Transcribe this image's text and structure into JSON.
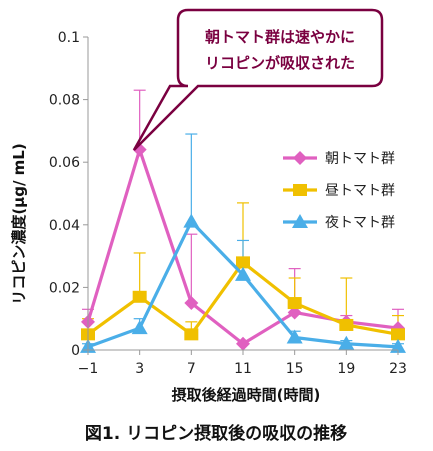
{
  "chart_data": {
    "type": "line",
    "x": [
      -1,
      3,
      7,
      11,
      15,
      19,
      23
    ],
    "xlabel": "摂取後経過時間(時間)",
    "ylabel": "リコピン濃度(μg/ mL)",
    "ylim": [
      0,
      0.1
    ],
    "y_ticks": [
      "0",
      "0.02",
      "0.04",
      "0.06",
      "0.08",
      "0.1"
    ],
    "x_ticks": [
      "−1",
      "3",
      "7",
      "11",
      "15",
      "19",
      "23"
    ],
    "grid": false,
    "legend_position": "right",
    "series": [
      {
        "name": "朝トマト群",
        "color": "#e060c0",
        "marker": "diamond",
        "values": [
          0.009,
          0.064,
          0.015,
          0.002,
          0.012,
          0.009,
          0.007
        ],
        "error_upper": [
          0.013,
          0.083,
          0.037,
          0.003,
          0.026,
          0.011,
          0.013
        ]
      },
      {
        "name": "昼トマト群",
        "color": "#f0c000",
        "marker": "square",
        "values": [
          0.005,
          0.017,
          0.005,
          0.028,
          0.015,
          0.008,
          0.005
        ],
        "error_upper": [
          0.01,
          0.031,
          0.009,
          0.047,
          0.023,
          0.023,
          0.011
        ]
      },
      {
        "name": "夜トマト群",
        "color": "#4aaee8",
        "marker": "triangle",
        "values": [
          0.001,
          0.007,
          0.041,
          0.024,
          0.004,
          0.002,
          0.001
        ],
        "error_upper": [
          0.002,
          0.01,
          0.069,
          0.035,
          0.006,
          0.003,
          0.002
        ]
      }
    ]
  },
  "callout": {
    "line1": "朝トマト群は速やかに",
    "line2": "リコピンが吸収された",
    "border_color": "#7a0040"
  },
  "caption": "図1. リコピン摂取後の吸収の推移"
}
